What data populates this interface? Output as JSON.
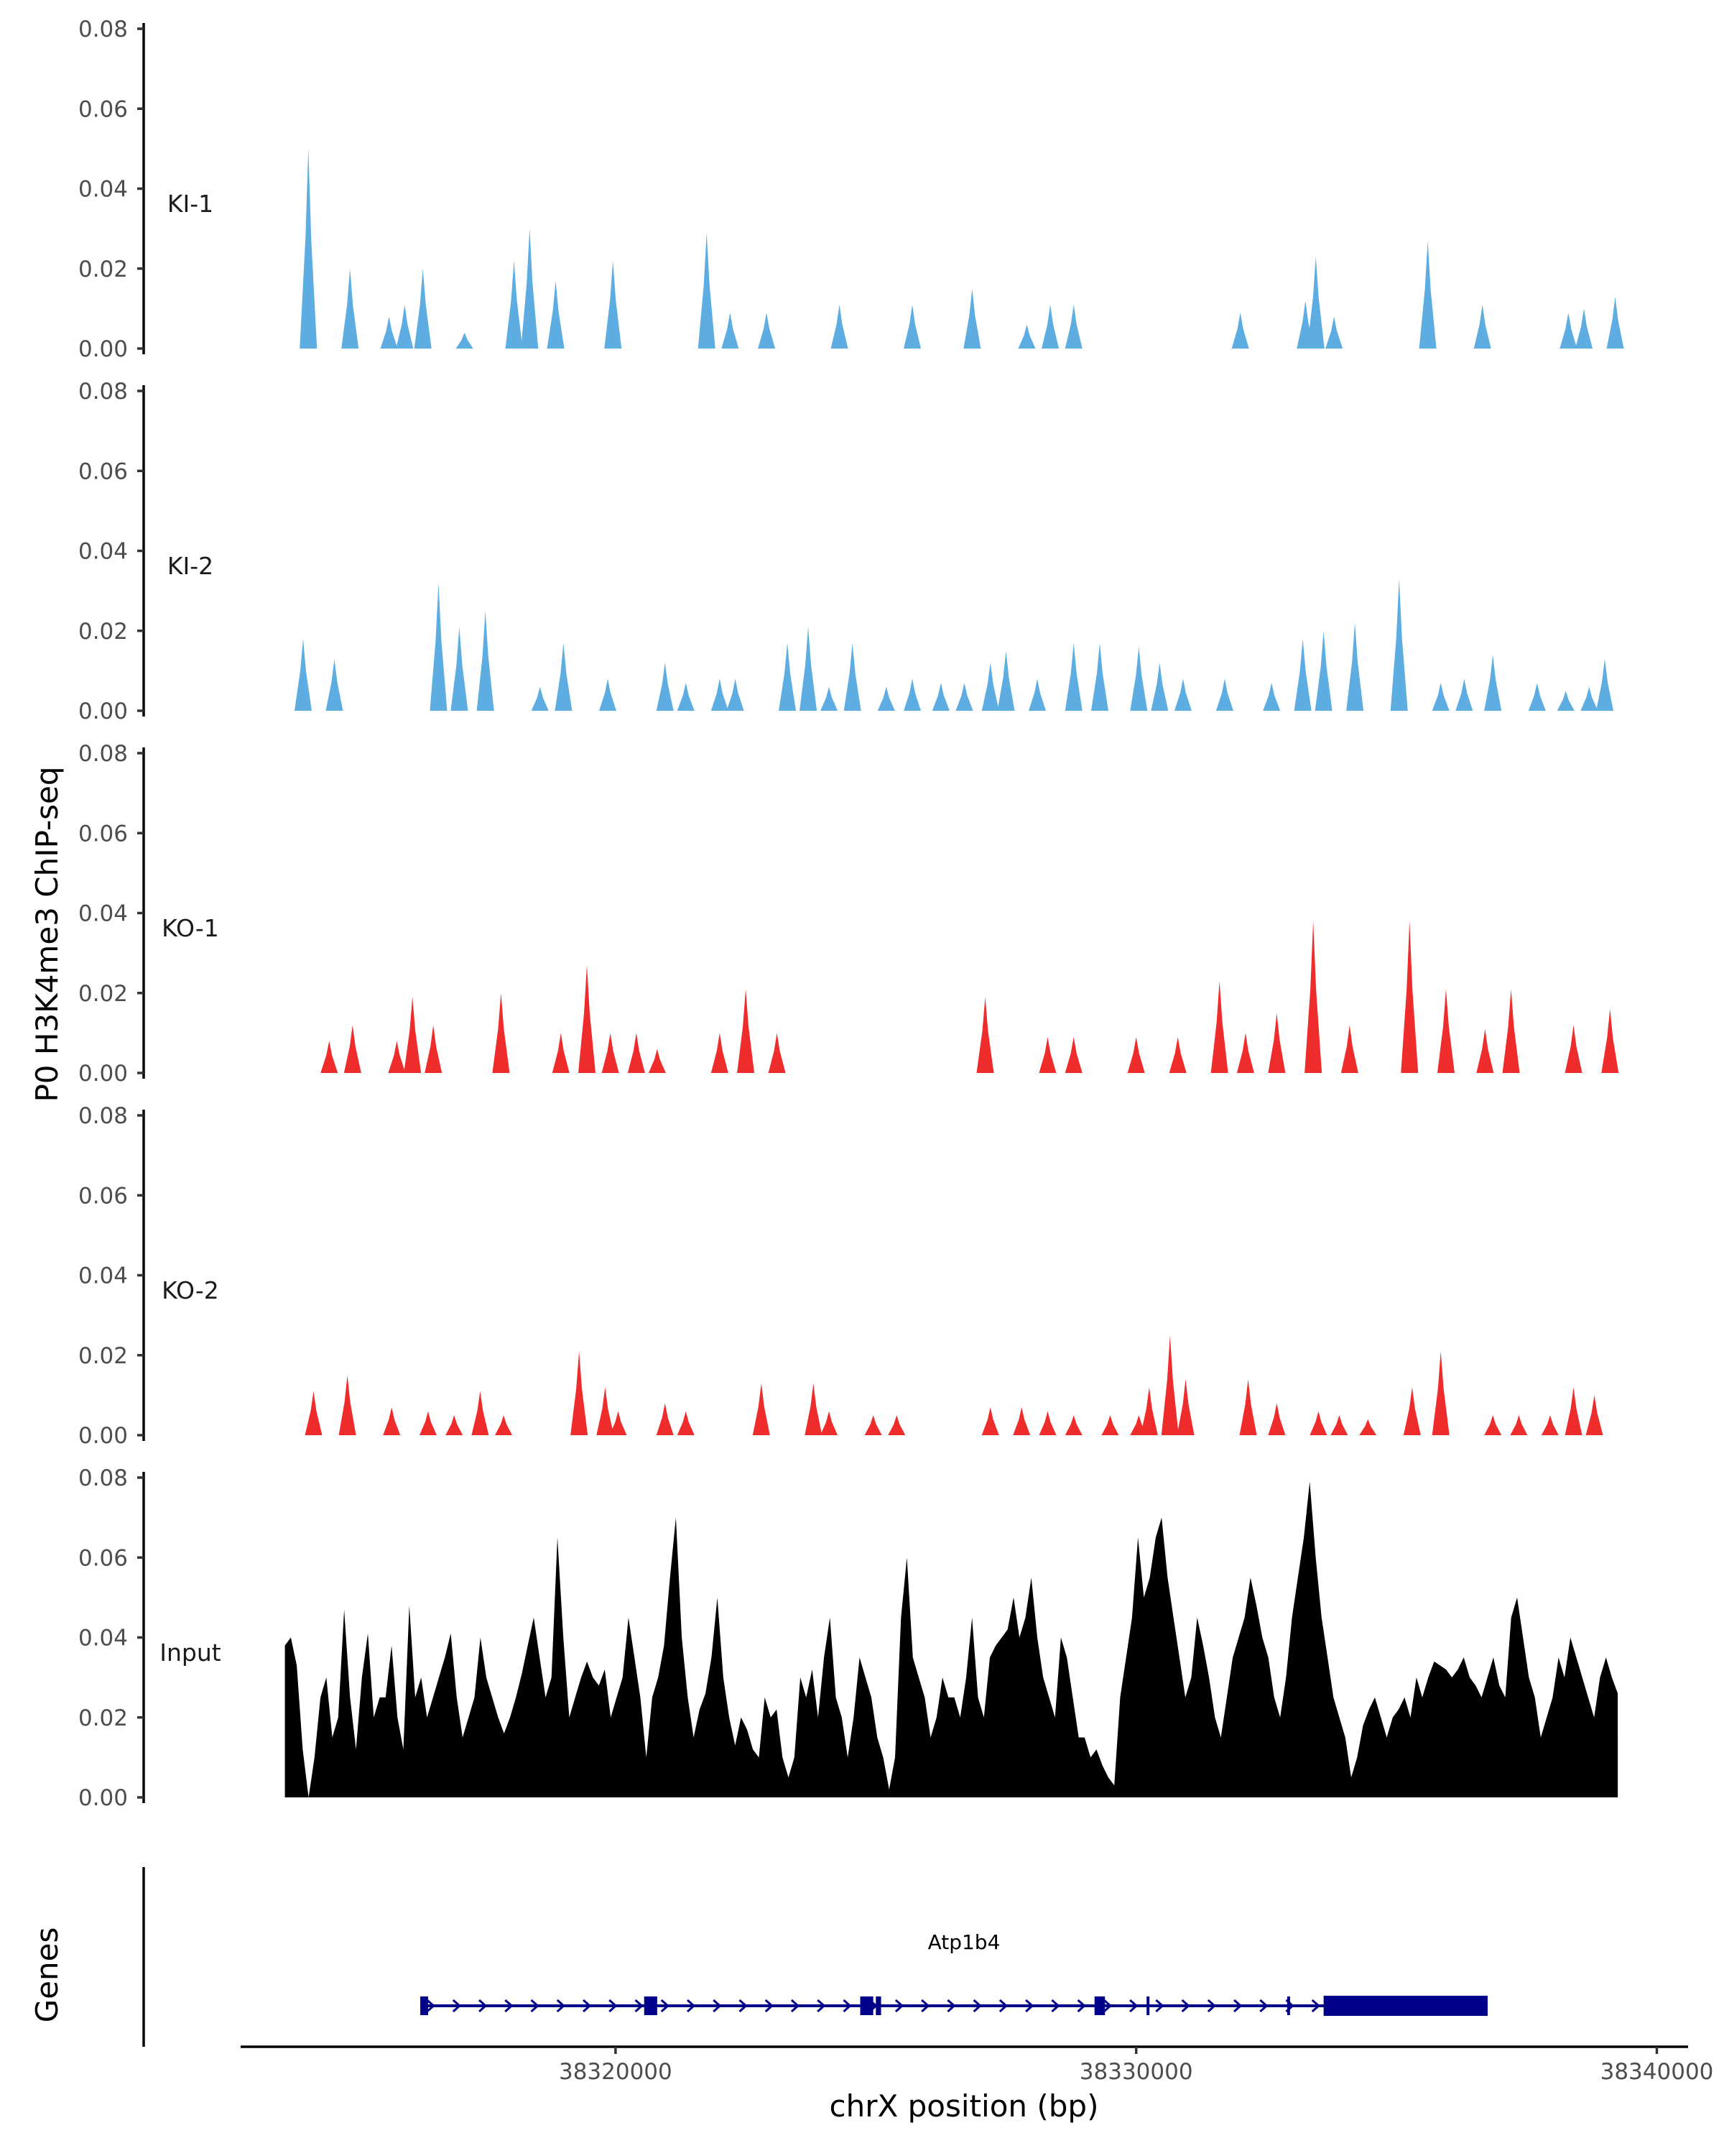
{
  "chart_data": {
    "type": "area",
    "title": "",
    "ylabel": "P0 H3K4me3 ChIP-seq",
    "xlabel": "chrX position (bp)",
    "xlim": [
      38312800,
      38340600
    ],
    "x_ticks": [
      38320000,
      38330000,
      38340000
    ],
    "x_tick_labels": [
      "38320000",
      "38330000",
      "38340000"
    ],
    "ylim": [
      0,
      0.08
    ],
    "y_ticks": [
      0,
      0.02,
      0.04,
      0.06,
      0.08
    ],
    "y_tick_labels": [
      "0.00",
      "0.02",
      "0.04",
      "0.06",
      "0.08"
    ],
    "tracks": [
      {
        "name": "KI-1",
        "color": "#5dade2",
        "peaks": [
          [
            38314100,
            0.05
          ],
          [
            38314900,
            0.02
          ],
          [
            38315650,
            0.008
          ],
          [
            38315950,
            0.011
          ],
          [
            38316300,
            0.02
          ],
          [
            38317100,
            0.004
          ],
          [
            38318050,
            0.022
          ],
          [
            38318350,
            0.03
          ],
          [
            38318850,
            0.017
          ],
          [
            38319950,
            0.022
          ],
          [
            38321750,
            0.029
          ],
          [
            38322200,
            0.009
          ],
          [
            38322900,
            0.009
          ],
          [
            38324300,
            0.011
          ],
          [
            38325700,
            0.011
          ],
          [
            38326850,
            0.015
          ],
          [
            38327900,
            0.006
          ],
          [
            38328350,
            0.011
          ],
          [
            38328800,
            0.011
          ],
          [
            38332000,
            0.009
          ],
          [
            38333250,
            0.012
          ],
          [
            38333450,
            0.023
          ],
          [
            38333800,
            0.008
          ],
          [
            38335600,
            0.027
          ],
          [
            38336650,
            0.011
          ],
          [
            38338300,
            0.009
          ],
          [
            38338600,
            0.01
          ],
          [
            38339200,
            0.013
          ]
        ]
      },
      {
        "name": "KI-2",
        "color": "#5dade2",
        "peaks": [
          [
            38314000,
            0.018
          ],
          [
            38314600,
            0.013
          ],
          [
            38316600,
            0.032
          ],
          [
            38317000,
            0.021
          ],
          [
            38317500,
            0.025
          ],
          [
            38318550,
            0.006
          ],
          [
            38319000,
            0.017
          ],
          [
            38319850,
            0.008
          ],
          [
            38320950,
            0.012
          ],
          [
            38321350,
            0.007
          ],
          [
            38322000,
            0.008
          ],
          [
            38322300,
            0.008
          ],
          [
            38323300,
            0.017
          ],
          [
            38323700,
            0.021
          ],
          [
            38324100,
            0.006
          ],
          [
            38324550,
            0.017
          ],
          [
            38325200,
            0.006
          ],
          [
            38325700,
            0.008
          ],
          [
            38326250,
            0.007
          ],
          [
            38326700,
            0.007
          ],
          [
            38327200,
            0.012
          ],
          [
            38327500,
            0.015
          ],
          [
            38328100,
            0.008
          ],
          [
            38328800,
            0.017
          ],
          [
            38329300,
            0.017
          ],
          [
            38330050,
            0.016
          ],
          [
            38330450,
            0.012
          ],
          [
            38330900,
            0.008
          ],
          [
            38331700,
            0.008
          ],
          [
            38332600,
            0.007
          ],
          [
            38333200,
            0.018
          ],
          [
            38333600,
            0.02
          ],
          [
            38334200,
            0.022
          ],
          [
            38335050,
            0.033
          ],
          [
            38335850,
            0.007
          ],
          [
            38336300,
            0.008
          ],
          [
            38336850,
            0.014
          ],
          [
            38337700,
            0.007
          ],
          [
            38338250,
            0.005
          ],
          [
            38338700,
            0.006
          ],
          [
            38339000,
            0.013
          ]
        ]
      },
      {
        "name": "KO-1",
        "color": "#ee2c2c",
        "peaks": [
          [
            38314500,
            0.008
          ],
          [
            38314950,
            0.012
          ],
          [
            38315800,
            0.008
          ],
          [
            38316100,
            0.019
          ],
          [
            38316500,
            0.012
          ],
          [
            38317800,
            0.02
          ],
          [
            38318950,
            0.01
          ],
          [
            38319450,
            0.027
          ],
          [
            38319900,
            0.01
          ],
          [
            38320400,
            0.01
          ],
          [
            38320800,
            0.006
          ],
          [
            38322000,
            0.01
          ],
          [
            38322500,
            0.021
          ],
          [
            38323100,
            0.01
          ],
          [
            38327100,
            0.019
          ],
          [
            38328300,
            0.009
          ],
          [
            38328800,
            0.009
          ],
          [
            38330000,
            0.009
          ],
          [
            38330800,
            0.009
          ],
          [
            38331600,
            0.023
          ],
          [
            38332100,
            0.01
          ],
          [
            38332700,
            0.015
          ],
          [
            38333400,
            0.038
          ],
          [
            38334100,
            0.012
          ],
          [
            38335250,
            0.038
          ],
          [
            38335950,
            0.021
          ],
          [
            38336700,
            0.011
          ],
          [
            38337200,
            0.021
          ],
          [
            38338400,
            0.012
          ],
          [
            38339100,
            0.016
          ]
        ]
      },
      {
        "name": "KO-2",
        "color": "#ee2c2c",
        "peaks": [
          [
            38314200,
            0.011
          ],
          [
            38314850,
            0.015
          ],
          [
            38315700,
            0.007
          ],
          [
            38316400,
            0.006
          ],
          [
            38316900,
            0.005
          ],
          [
            38317400,
            0.011
          ],
          [
            38317850,
            0.005
          ],
          [
            38319300,
            0.021
          ],
          [
            38319800,
            0.012
          ],
          [
            38320050,
            0.006
          ],
          [
            38320950,
            0.008
          ],
          [
            38321350,
            0.006
          ],
          [
            38322800,
            0.013
          ],
          [
            38323800,
            0.013
          ],
          [
            38324100,
            0.006
          ],
          [
            38324950,
            0.005
          ],
          [
            38325400,
            0.005
          ],
          [
            38327200,
            0.007
          ],
          [
            38327800,
            0.007
          ],
          [
            38328300,
            0.006
          ],
          [
            38328800,
            0.005
          ],
          [
            38329500,
            0.005
          ],
          [
            38330050,
            0.005
          ],
          [
            38330250,
            0.012
          ],
          [
            38330650,
            0.025
          ],
          [
            38330950,
            0.014
          ],
          [
            38332150,
            0.014
          ],
          [
            38332700,
            0.008
          ],
          [
            38333500,
            0.006
          ],
          [
            38333900,
            0.005
          ],
          [
            38334450,
            0.004
          ],
          [
            38335300,
            0.012
          ],
          [
            38335850,
            0.021
          ],
          [
            38336850,
            0.005
          ],
          [
            38337350,
            0.005
          ],
          [
            38337950,
            0.005
          ],
          [
            38338400,
            0.012
          ],
          [
            38338800,
            0.01
          ]
        ]
      },
      {
        "name": "Input",
        "color": "#000000",
        "values": [
          0.038,
          0.04,
          0.033,
          0.012,
          0,
          0.01,
          0.025,
          0.03,
          0.015,
          0.02,
          0.047,
          0.025,
          0.012,
          0.03,
          0.041,
          0.02,
          0.025,
          0.025,
          0.038,
          0.02,
          0.012,
          0.048,
          0.025,
          0.03,
          0.02,
          0.025,
          0.03,
          0.035,
          0.041,
          0.025,
          0.015,
          0.02,
          0.025,
          0.04,
          0.03,
          0.025,
          0.02,
          0.016,
          0.02,
          0.025,
          0.031,
          0.038,
          0.045,
          0.035,
          0.025,
          0.03,
          0.065,
          0.04,
          0.02,
          0.025,
          0.03,
          0.034,
          0.03,
          0.028,
          0.032,
          0.02,
          0.025,
          0.03,
          0.045,
          0.035,
          0.025,
          0.01,
          0.025,
          0.03,
          0.038,
          0.055,
          0.07,
          0.04,
          0.025,
          0.015,
          0.022,
          0.026,
          0.035,
          0.05,
          0.03,
          0.02,
          0.013,
          0.02,
          0.017,
          0.012,
          0.01,
          0.025,
          0.02,
          0.022,
          0.01,
          0.005,
          0.01,
          0.03,
          0.025,
          0.032,
          0.02,
          0.035,
          0.045,
          0.025,
          0.02,
          0.01,
          0.02,
          0.035,
          0.03,
          0.025,
          0.015,
          0.01,
          0.002,
          0.01,
          0.045,
          0.06,
          0.035,
          0.03,
          0.025,
          0.015,
          0.02,
          0.03,
          0.025,
          0.025,
          0.02,
          0.03,
          0.045,
          0.025,
          0.02,
          0.035,
          0.038,
          0.04,
          0.042,
          0.05,
          0.04,
          0.045,
          0.055,
          0.04,
          0.03,
          0.025,
          0.02,
          0.04,
          0.035,
          0.025,
          0.015,
          0.015,
          0.01,
          0.012,
          0.008,
          0.005,
          0.003,
          0.025,
          0.035,
          0.045,
          0.065,
          0.05,
          0.055,
          0.065,
          0.07,
          0.055,
          0.045,
          0.035,
          0.025,
          0.03,
          0.045,
          0.038,
          0.03,
          0.02,
          0.015,
          0.025,
          0.035,
          0.04,
          0.045,
          0.055,
          0.048,
          0.04,
          0.035,
          0.025,
          0.02,
          0.03,
          0.045,
          0.055,
          0.065,
          0.079,
          0.06,
          0.045,
          0.035,
          0.025,
          0.02,
          0.015,
          0.005,
          0.01,
          0.018,
          0.022,
          0.025,
          0.02,
          0.015,
          0.02,
          0.022,
          0.025,
          0.02,
          0.03,
          0.025,
          0.03,
          0.034,
          0.033,
          0.032,
          0.03,
          0.032,
          0.035,
          0.03,
          0.028,
          0.025,
          0.03,
          0.035,
          0.028,
          0.025,
          0.045,
          0.05,
          0.04,
          0.03,
          0.025,
          0.015,
          0.02,
          0.025,
          0.035,
          0.03,
          0.04,
          0.035,
          0.03,
          0.025,
          0.02,
          0.03,
          0.035,
          0.03,
          0.026
        ]
      }
    ],
    "genes_track": {
      "label": "Genes",
      "gene_name": "Atp1b4",
      "color": "#00008b",
      "strand": "+",
      "start": 38316250,
      "end": 38336750,
      "exons": [
        [
          38316250,
          38316400
        ],
        [
          38320550,
          38320800
        ],
        [
          38324700,
          38324950
        ],
        [
          38325000,
          38325100
        ],
        [
          38329200,
          38329400
        ],
        [
          38330200,
          38330240
        ],
        [
          38332900,
          38332940
        ],
        [
          38333600,
          38336750
        ]
      ]
    }
  }
}
